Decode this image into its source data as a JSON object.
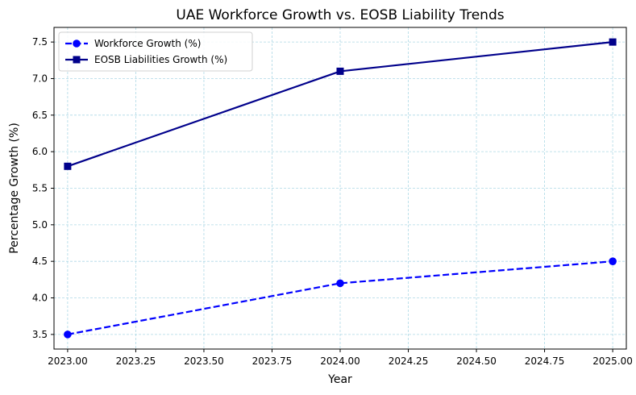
{
  "chart_data": {
    "type": "line",
    "title": "UAE Workforce Growth vs. EOSB Liability Trends",
    "xlabel": "Year",
    "ylabel": "Percentage Growth (%)",
    "xlim": [
      2022.95,
      2025.05
    ],
    "ylim": [
      3.3,
      7.7
    ],
    "x_ticks": [
      "2023.00",
      "2023.25",
      "2023.50",
      "2023.75",
      "2024.00",
      "2024.25",
      "2024.50",
      "2024.75",
      "2025.00"
    ],
    "y_ticks": [
      "3.5",
      "4.0",
      "4.5",
      "5.0",
      "5.5",
      "6.0",
      "6.5",
      "7.0",
      "7.5"
    ],
    "grid": true,
    "legend_position": "top-left",
    "series": [
      {
        "name": "Workforce Growth (%)",
        "x": [
          2023,
          2024,
          2025
        ],
        "values": [
          3.5,
          4.2,
          4.5
        ],
        "color": "#0000ff",
        "line_style": "dashed",
        "marker": "circle"
      },
      {
        "name": "EOSB Liabilities Growth (%)",
        "x": [
          2023,
          2024,
          2025
        ],
        "values": [
          5.8,
          7.1,
          7.5
        ],
        "color": "#00008b",
        "line_style": "solid",
        "marker": "square"
      }
    ],
    "grid_color": "#add8e6"
  }
}
